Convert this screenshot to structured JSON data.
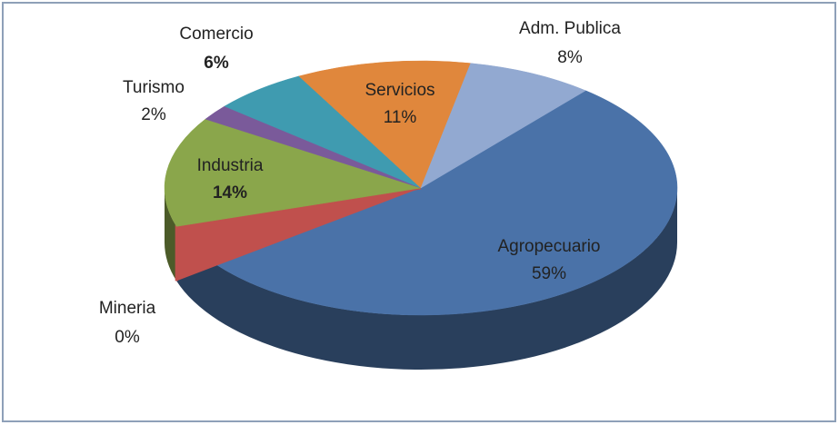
{
  "chart_data": {
    "type": "pie",
    "categories": [
      "Agropecuario",
      "Mineria",
      "Industria",
      "Turismo",
      "Comercio",
      "Servicios",
      "Adm. Publica"
    ],
    "values": [
      59,
      0,
      14,
      2,
      6,
      11,
      8
    ],
    "value_labels": [
      "59%",
      "0%",
      "14%",
      "2%",
      "6%",
      "11%",
      "8%"
    ],
    "colors": [
      "#4a72a8",
      "#c0504d",
      "#8aa64b",
      "#7a5a9a",
      "#3f9bb0",
      "#e0873c",
      "#92a9d1"
    ]
  }
}
